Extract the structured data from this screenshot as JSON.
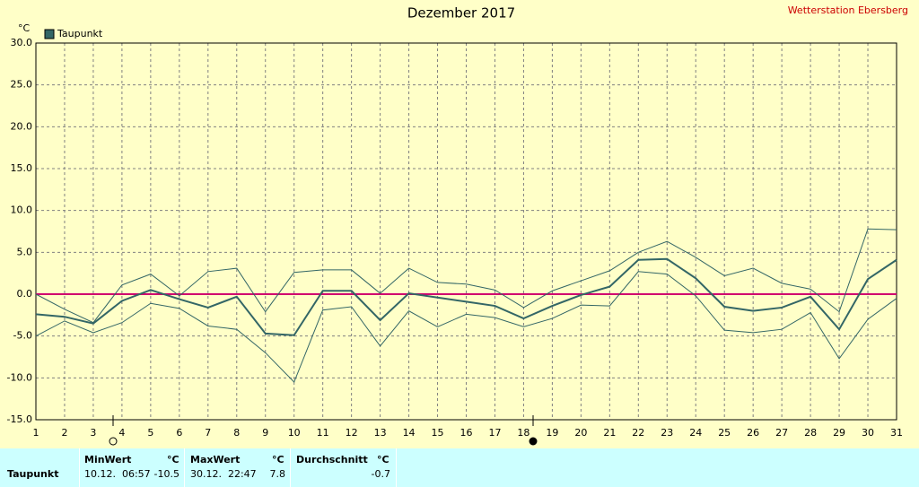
{
  "chart_data": {
    "type": "line",
    "title": "Dezember 2017",
    "station": "Wetterstation Ebersberg",
    "y_unit": "°C",
    "x": [
      1,
      2,
      3,
      4,
      5,
      6,
      7,
      8,
      9,
      10,
      11,
      12,
      13,
      14,
      15,
      16,
      17,
      18,
      19,
      20,
      21,
      22,
      23,
      24,
      25,
      26,
      27,
      28,
      29,
      30,
      31
    ],
    "xlim": [
      1,
      31
    ],
    "xticks": [
      1,
      2,
      3,
      4,
      5,
      6,
      7,
      8,
      9,
      10,
      11,
      12,
      13,
      14,
      15,
      16,
      17,
      18,
      19,
      20,
      21,
      22,
      23,
      24,
      25,
      26,
      27,
      28,
      29,
      30,
      31
    ],
    "ylim": [
      -15,
      30
    ],
    "yticks": [
      {
        "value": -15,
        "label": "-15.0"
      },
      {
        "value": -10,
        "label": "-10.0"
      },
      {
        "value": -5,
        "label": "-5.0"
      },
      {
        "value": 0,
        "label": "0.0"
      },
      {
        "value": 5,
        "label": "5.0"
      },
      {
        "value": 10,
        "label": "10.0"
      },
      {
        "value": 15,
        "label": "15.0"
      },
      {
        "value": 20,
        "label": "20.0"
      },
      {
        "value": 25,
        "label": "25.0"
      },
      {
        "value": 30,
        "label": "30.0"
      }
    ],
    "grid": true,
    "reference_line": {
      "value": 0,
      "color": "#d0006f"
    },
    "series": [
      {
        "name": "Taupunkt",
        "color": "#336666",
        "width": 2,
        "values": [
          -2.4,
          -2.7,
          -3.5,
          -0.8,
          0.5,
          -0.6,
          -1.6,
          -0.3,
          -4.7,
          -4.9,
          0.4,
          0.4,
          -3.1,
          0.1,
          -0.4,
          -0.9,
          -1.4,
          -2.9,
          -1.4,
          -0.1,
          0.9,
          4.1,
          4.2,
          1.9,
          -1.5,
          -2.0,
          -1.6,
          -0.3,
          -4.2,
          1.8,
          4.1
        ]
      },
      {
        "color": "#336666",
        "width": 1,
        "values": [
          0.0,
          -1.8,
          -3.4,
          1.1,
          2.4,
          -0.2,
          2.7,
          3.1,
          -2.1,
          2.6,
          2.9,
          2.9,
          0.1,
          3.1,
          1.4,
          1.2,
          0.5,
          -1.6,
          0.4,
          1.6,
          2.8,
          5.0,
          6.3,
          4.4,
          2.2,
          3.1,
          1.3,
          0.6,
          -2.1,
          7.8,
          7.7
        ]
      },
      {
        "color": "#336666",
        "width": 1,
        "values": [
          -5.0,
          -3.2,
          -4.6,
          -3.4,
          -1.1,
          -1.7,
          -3.8,
          -4.2,
          -7.0,
          -10.5,
          -1.9,
          -1.5,
          -6.2,
          -2.0,
          -3.9,
          -2.4,
          -2.8,
          -3.9,
          -2.9,
          -1.3,
          -1.4,
          2.7,
          2.4,
          -0.2,
          -4.3,
          -4.6,
          -4.2,
          -2.2,
          -7.7,
          -3.0,
          -0.5
        ]
      }
    ]
  },
  "table": {
    "columns": [
      {
        "name": "MinWert",
        "unit": "°C"
      },
      {
        "name": "MaxWert",
        "unit": "°C"
      },
      {
        "name": "Durchschnitt",
        "unit": "°C"
      }
    ],
    "rows": [
      {
        "label": "Taupunkt",
        "min_time": "10.12.  06:57",
        "min": "-10.5",
        "max_time": "30.12.  22:47",
        "max": "7.8",
        "mean": "-0.7"
      }
    ]
  }
}
